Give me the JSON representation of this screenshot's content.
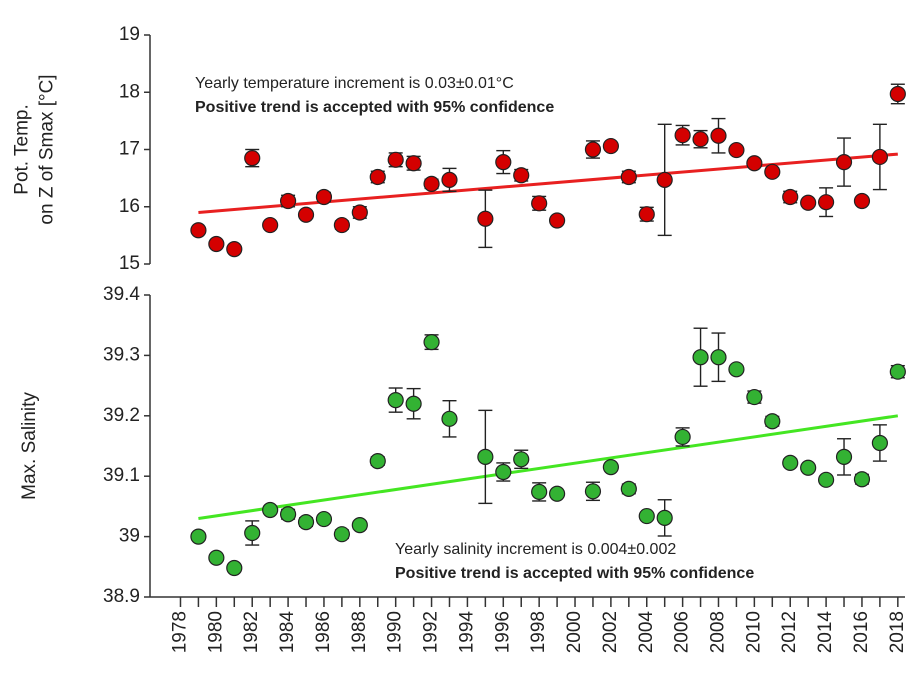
{
  "chart_data": [
    {
      "type": "scatter",
      "y_label": [
        "Pot. Temp.",
        "on Z of Smax [°C]"
      ],
      "annotations": [
        {
          "text": "Yearly temperature increment is 0.03±0.01°C",
          "color": "#222222"
        },
        {
          "text": "Positive trend is accepted with 95% confidence",
          "color": "#e8201e"
        }
      ],
      "xlim": [
        1976.3,
        2018.4
      ],
      "ylim": [
        15,
        19
      ],
      "yticks": [
        15,
        16,
        17,
        18,
        19
      ],
      "series": [
        {
          "color": "#d40000",
          "x": [
            1979,
            1980,
            1981,
            1982,
            1983,
            1984,
            1985,
            1986,
            1987,
            1988,
            1989,
            1990,
            1991,
            1992,
            1993,
            1995,
            1996,
            1997,
            1998,
            1999,
            2001,
            2002,
            2003,
            2004,
            2005,
            2006,
            2007,
            2008,
            2009,
            2010,
            2011,
            2012,
            2013,
            2014,
            2015,
            2016,
            2017,
            2018
          ],
          "values": [
            15.59,
            15.35,
            15.26,
            16.85,
            15.68,
            16.1,
            15.86,
            16.17,
            15.68,
            15.9,
            16.52,
            16.82,
            16.76,
            16.4,
            16.47,
            15.79,
            16.78,
            16.55,
            16.06,
            15.76,
            17.0,
            17.06,
            16.52,
            15.87,
            16.47,
            17.25,
            17.18,
            17.24,
            16.99,
            16.76,
            16.61,
            16.17,
            16.07,
            16.08,
            16.78,
            16.1,
            16.87,
            17.97
          ],
          "errors": [
            0.05,
            0.04,
            0.04,
            0.15,
            0.05,
            0.1,
            0.06,
            0.08,
            0.07,
            0.1,
            0.1,
            0.12,
            0.12,
            0.08,
            0.2,
            0.5,
            0.2,
            0.1,
            0.12,
            null,
            0.15,
            null,
            0.1,
            0.12,
            0.97,
            0.17,
            0.15,
            0.3,
            null,
            0.05,
            0.06,
            0.1,
            0.05,
            0.25,
            0.42,
            0.05,
            0.57,
            0.17
          ]
        }
      ],
      "trend": {
        "color": "#e82020",
        "x": [
          1979,
          2018
        ],
        "values": [
          15.9,
          16.92
        ]
      }
    },
    {
      "type": "scatter",
      "y_label": [
        "Max. Salinity"
      ],
      "annotations": [
        {
          "text": "Yearly salinity increment is 0.004±0.002",
          "color": "#222222"
        },
        {
          "text": "Positive trend is accepted with 95% confidence",
          "color": "#e8201e"
        }
      ],
      "xlim": [
        1976.3,
        2018.4
      ],
      "xticks": [
        1978,
        1980,
        1982,
        1984,
        1986,
        1988,
        1990,
        1992,
        1994,
        1996,
        1998,
        2000,
        2002,
        2004,
        2006,
        2008,
        2010,
        2012,
        2014,
        2016,
        2018
      ],
      "ylim": [
        38.9,
        39.4
      ],
      "yticks": [
        38.9,
        39,
        39.1,
        39.2,
        39.3,
        39.4
      ],
      "series": [
        {
          "color": "#33b233",
          "x": [
            1979,
            1980,
            1981,
            1982,
            1983,
            1984,
            1985,
            1986,
            1987,
            1988,
            1989,
            1990,
            1991,
            1992,
            1993,
            1995,
            1996,
            1997,
            1998,
            1999,
            2001,
            2002,
            2003,
            2004,
            2005,
            2006,
            2007,
            2008,
            2009,
            2010,
            2011,
            2012,
            2013,
            2014,
            2015,
            2016,
            2017,
            2018
          ],
          "values": [
            39.0,
            38.965,
            38.948,
            39.006,
            39.044,
            39.037,
            39.024,
            39.029,
            39.004,
            39.019,
            39.125,
            39.226,
            39.22,
            39.322,
            39.195,
            39.132,
            39.107,
            39.128,
            39.074,
            39.071,
            39.075,
            39.115,
            39.079,
            39.034,
            39.031,
            39.165,
            39.297,
            39.297,
            39.277,
            39.231,
            39.191,
            39.122,
            39.114,
            39.094,
            39.132,
            39.095,
            39.155,
            39.273
          ],
          "errors": [
            0.006,
            0.005,
            0.005,
            0.02,
            0.005,
            0.008,
            0.007,
            0.006,
            0.007,
            0.006,
            0.007,
            0.02,
            0.025,
            0.012,
            0.03,
            0.077,
            0.015,
            0.015,
            0.015,
            null,
            0.015,
            null,
            0.008,
            0.005,
            0.03,
            0.015,
            0.048,
            0.04,
            null,
            0.01,
            0.008,
            0.006,
            0.005,
            0.005,
            0.03,
            0.008,
            0.03,
            0.01
          ]
        }
      ],
      "trend": {
        "color": "#44e622",
        "x": [
          1979,
          2018
        ],
        "values": [
          39.03,
          39.2
        ]
      }
    }
  ]
}
